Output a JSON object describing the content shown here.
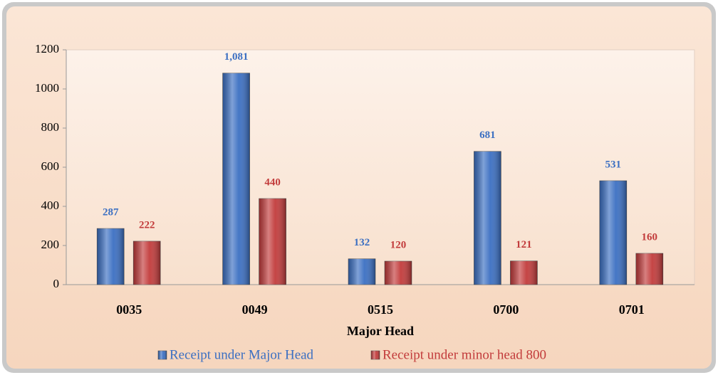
{
  "chart_data": {
    "type": "bar",
    "x_label": "Major Head",
    "categories": [
      "0035",
      "0049",
      "0515",
      "0700",
      "0701"
    ],
    "series": [
      {
        "name": "Receipt under Major Head",
        "color": "#3b6fc2",
        "values": [
          287,
          1081,
          132,
          681,
          531
        ],
        "value_labels": [
          "287",
          "1,081",
          "132",
          "681",
          "531"
        ]
      },
      {
        "name": "Receipt under minor head 800",
        "color": "#c23b3b",
        "values": [
          222,
          440,
          120,
          121,
          160
        ]
      }
    ],
    "ylim": [
      0,
      1200
    ],
    "yticks": [
      0,
      200,
      400,
      600,
      800,
      1000,
      1200
    ],
    "grid": false,
    "legend": "bottom"
  }
}
